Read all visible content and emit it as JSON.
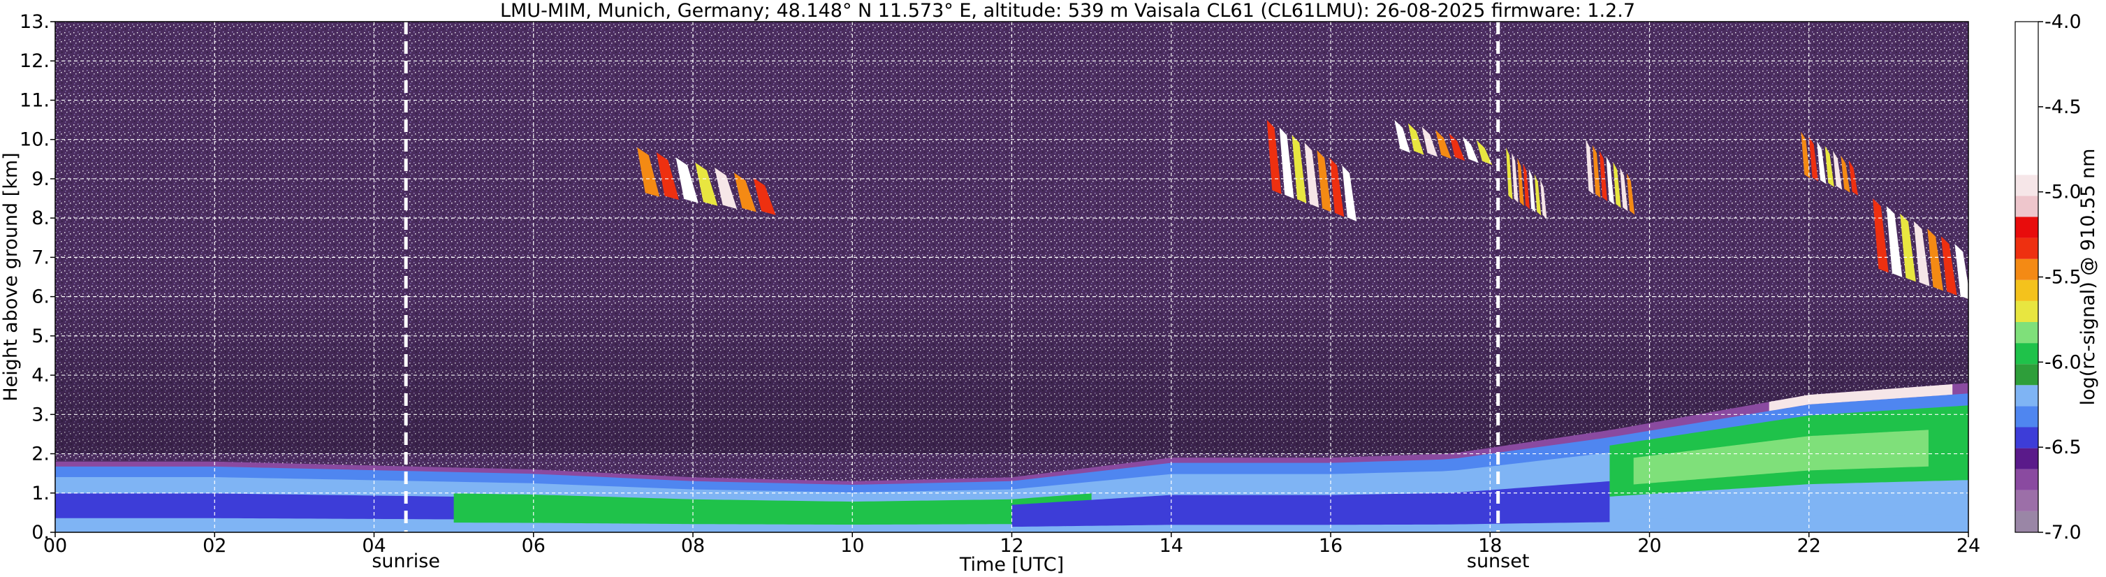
{
  "chart_data": {
    "type": "heatmap",
    "title": "LMU-MIM, Munich, Germany; 48.148° N 11.573° E, altitude: 539 m    Vaisala CL61 (CL61LMU): 26-08-2025    firmware: 1.2.7",
    "xlabel": "Time [UTC]",
    "ylabel": "Height above ground [km]",
    "colorbar_label": "log(rc-signal) @ 910.55 nm",
    "xlim": [
      0,
      24
    ],
    "ylim": [
      0,
      13
    ],
    "x_ticks": [
      0,
      2,
      4,
      6,
      8,
      10,
      12,
      14,
      16,
      18,
      20,
      22,
      24
    ],
    "x_tick_labels": [
      "00",
      "02",
      "04",
      "06",
      "08",
      "10",
      "12",
      "14",
      "16",
      "18",
      "20",
      "22",
      "24"
    ],
    "y_ticks": [
      0,
      1,
      2,
      3,
      4,
      5,
      6,
      7,
      8,
      9,
      10,
      11,
      12,
      13
    ],
    "y_tick_labels": [
      "0.",
      "1.",
      "2.",
      "3.",
      "4.",
      "5.",
      "6.",
      "7.",
      "8.",
      "9.",
      "10.",
      "11.",
      "12.",
      "13."
    ],
    "colorbar_range": [
      -7.0,
      -4.0
    ],
    "colorbar_ticks": [
      -7.0,
      -6.5,
      -6.0,
      -5.5,
      -5.0,
      -4.5,
      -4.0
    ],
    "colorbar_tick_labels": [
      "-7.0",
      "-6.5",
      "-6.0",
      "-5.5",
      "-5.0",
      "-4.5",
      "-4.0"
    ],
    "colormap": [
      "#9a86a6",
      "#9c6fa8",
      "#8a4aa0",
      "#5a1a8a",
      "#3d3dd8",
      "#4f86f0",
      "#7fb4f4",
      "#2e9e3a",
      "#1fc24a",
      "#7fe07a",
      "#e8e640",
      "#f4c21c",
      "#f48a14",
      "#ee3010",
      "#e80c0c",
      "#eec6cc",
      "#f6e6e8",
      "#ffffff"
    ],
    "grid": true,
    "grid_color": "#ffffff",
    "background_color": "#4a2c5e",
    "vertical_markers": [
      {
        "x": 4.4,
        "label": "sunrise"
      },
      {
        "x": 18.1,
        "label": "sunset"
      }
    ],
    "features": [
      {
        "kind": "boundary_layer",
        "x": [
          0,
          2,
          4,
          6,
          8,
          10,
          12,
          14,
          16,
          17.5,
          19.5,
          22,
          24
        ],
        "top_km": [
          1.8,
          1.8,
          1.7,
          1.6,
          1.4,
          1.3,
          1.4,
          1.9,
          1.9,
          2.0,
          2.6,
          3.5,
          3.8
        ]
      },
      {
        "kind": "cirrus",
        "x_range": [
          7.3,
          9.0
        ],
        "height_km": [
          8.0,
          9.8
        ]
      },
      {
        "kind": "cirrus",
        "x_range": [
          15.2,
          16.3
        ],
        "height_km": [
          7.8,
          10.5
        ]
      },
      {
        "kind": "cirrus",
        "x_range": [
          16.8,
          18.0
        ],
        "height_km": [
          9.3,
          10.5
        ]
      },
      {
        "kind": "cirrus",
        "x_range": [
          18.2,
          18.7
        ],
        "height_km": [
          7.9,
          9.8
        ]
      },
      {
        "kind": "cirrus",
        "x_range": [
          19.2,
          19.8
        ],
        "height_km": [
          8.0,
          10.0
        ]
      },
      {
        "kind": "cirrus",
        "x_range": [
          21.9,
          22.6
        ],
        "height_km": [
          8.5,
          10.2
        ]
      },
      {
        "kind": "cirrus",
        "x_range": [
          22.8,
          24.0
        ],
        "height_km": [
          5.8,
          8.5
        ]
      }
    ]
  }
}
